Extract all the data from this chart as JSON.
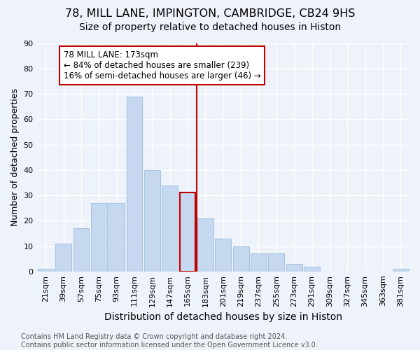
{
  "title": "78, MILL LANE, IMPINGTON, CAMBRIDGE, CB24 9HS",
  "subtitle": "Size of property relative to detached houses in Histon",
  "xlabel": "Distribution of detached houses by size in Histon",
  "ylabel": "Number of detached properties",
  "categories": [
    "21sqm",
    "39sqm",
    "57sqm",
    "75sqm",
    "93sqm",
    "111sqm",
    "129sqm",
    "147sqm",
    "165sqm",
    "183sqm",
    "201sqm",
    "219sqm",
    "237sqm",
    "255sqm",
    "273sqm",
    "291sqm",
    "309sqm",
    "327sqm",
    "345sqm",
    "363sqm",
    "381sqm"
  ],
  "values": [
    1,
    11,
    17,
    27,
    27,
    69,
    40,
    34,
    31,
    21,
    13,
    10,
    7,
    7,
    3,
    2,
    0,
    0,
    0,
    0,
    1
  ],
  "bar_color": "#c5d8f0",
  "bar_edge_color": "#a8c5e0",
  "highlight_bar_index": 8,
  "highlight_bar_color": "#c5d8f0",
  "highlight_bar_edge_color": "#c00000",
  "vline_x": 8.5,
  "vline_color": "#c00000",
  "annotation_text": "78 MILL LANE: 173sqm\n← 84% of detached houses are smaller (239)\n16% of semi-detached houses are larger (46) →",
  "annotation_box_color": "#ffffff",
  "annotation_box_edge_color": "#c00000",
  "ylim": [
    0,
    90
  ],
  "yticks": [
    0,
    10,
    20,
    30,
    40,
    50,
    60,
    70,
    80,
    90
  ],
  "footer": "Contains HM Land Registry data © Crown copyright and database right 2024.\nContains public sector information licensed under the Open Government Licence v3.0.",
  "background_color": "#eef2fa",
  "grid_color": "#ffffff",
  "title_fontsize": 11.5,
  "subtitle_fontsize": 10,
  "xlabel_fontsize": 10,
  "ylabel_fontsize": 9,
  "tick_fontsize": 8,
  "annotation_fontsize": 8.5,
  "footer_fontsize": 7
}
